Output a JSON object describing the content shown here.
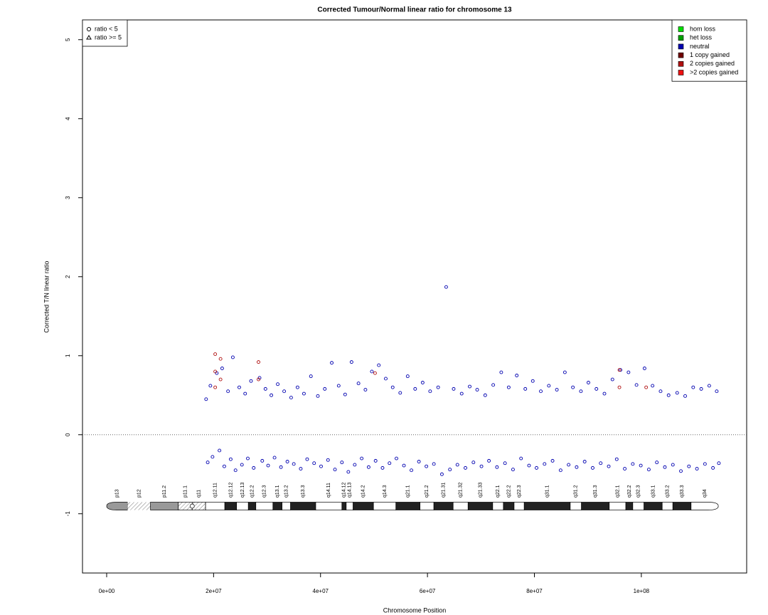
{
  "chart_data": {
    "type": "scatter",
    "title": "Corrected Tumour/Normal linear ratio for chromosome  13",
    "x_label": "Chromosome Position",
    "y_label": "Corrected T/N linear ratio",
    "xlim": [
      -4520000,
      119700000
    ],
    "ylim": [
      -1.75,
      5.25
    ],
    "xticks": [
      {
        "value": 0,
        "label": "0e+00"
      },
      {
        "value": 20000000,
        "label": "2e+07"
      },
      {
        "value": 40000000,
        "label": "4e+07"
      },
      {
        "value": 60000000,
        "label": "6e+07"
      },
      {
        "value": 80000000,
        "label": "8e+07"
      },
      {
        "value": 100000000,
        "label": "1e+08"
      }
    ],
    "yticks": [
      -1,
      0,
      1,
      2,
      3,
      4,
      5
    ],
    "reference_line": 0,
    "shape_legend": [
      "ratio < 5",
      "ratio >= 5"
    ],
    "legend_position": "top-right",
    "series": [
      {
        "name": "hom loss",
        "color": "#00e000",
        "x": [],
        "values": []
      },
      {
        "name": "het loss",
        "color": "#00a000",
        "x": [],
        "values": []
      },
      {
        "name": "neutral",
        "color": "#0000b0",
        "x": [
          18600000,
          18900000,
          19400000,
          19800000,
          20600000,
          21100000,
          21600000,
          22000000,
          22700000,
          23200000,
          23600000,
          24100000,
          24800000,
          25300000,
          25900000,
          26400000,
          27000000,
          27500000,
          28600000,
          29100000,
          29700000,
          30200000,
          30800000,
          31400000,
          32000000,
          32600000,
          33200000,
          33800000,
          34500000,
          35000000,
          35700000,
          36300000,
          36900000,
          37500000,
          38200000,
          38800000,
          39500000,
          40100000,
          40800000,
          41400000,
          42100000,
          42700000,
          43400000,
          44000000,
          44600000,
          45200000,
          45800000,
          46400000,
          47100000,
          47700000,
          48400000,
          49000000,
          49600000,
          50300000,
          50900000,
          51600000,
          52200000,
          52900000,
          53500000,
          54200000,
          54900000,
          55600000,
          56300000,
          57000000,
          57700000,
          58400000,
          59100000,
          59800000,
          60500000,
          61200000,
          62000000,
          62700000,
          63500000,
          64200000,
          64900000,
          65600000,
          66400000,
          67100000,
          67900000,
          68600000,
          69300000,
          70100000,
          70800000,
          71500000,
          72300000,
          73000000,
          73800000,
          74500000,
          75200000,
          76000000,
          76700000,
          77500000,
          78300000,
          79000000,
          79700000,
          80400000,
          81200000,
          81900000,
          82700000,
          83400000,
          84200000,
          84900000,
          85700000,
          86400000,
          87200000,
          87900000,
          88700000,
          89400000,
          90100000,
          90900000,
          91600000,
          92400000,
          93100000,
          93900000,
          94600000,
          95400000,
          96100000,
          96900000,
          97600000,
          98400000,
          99100000,
          99900000,
          100600000,
          101400000,
          102100000,
          102900000,
          103600000,
          104400000,
          105100000,
          105900000,
          106700000,
          107400000,
          108200000,
          108900000,
          109700000,
          110400000,
          111200000,
          111900000,
          112700000,
          113400000,
          114100000,
          114500000
        ],
        "values": [
          0.45,
          -0.35,
          0.62,
          -0.28,
          0.78,
          -0.2,
          0.84,
          -0.4,
          0.55,
          -0.31,
          0.98,
          -0.45,
          0.6,
          -0.38,
          0.52,
          -0.3,
          0.68,
          -0.42,
          0.72,
          -0.33,
          0.58,
          -0.39,
          0.5,
          -0.29,
          0.64,
          -0.41,
          0.55,
          -0.34,
          0.47,
          -0.37,
          0.6,
          -0.43,
          0.52,
          -0.31,
          0.74,
          -0.36,
          0.49,
          -0.4,
          0.58,
          -0.32,
          0.91,
          -0.44,
          0.62,
          -0.35,
          0.51,
          -0.47,
          0.92,
          -0.38,
          0.65,
          -0.3,
          0.57,
          -0.41,
          0.8,
          -0.33,
          0.88,
          -0.42,
          0.71,
          -0.36,
          0.6,
          -0.3,
          0.53,
          -0.39,
          0.74,
          -0.45,
          0.58,
          -0.34,
          0.66,
          -0.4,
          0.55,
          -0.37,
          0.6,
          -0.5,
          1.87,
          -0.44,
          0.58,
          -0.38,
          0.52,
          -0.42,
          0.61,
          -0.35,
          0.57,
          -0.4,
          0.5,
          -0.33,
          0.63,
          -0.41,
          0.79,
          -0.36,
          0.6,
          -0.44,
          0.75,
          -0.3,
          0.58,
          -0.39,
          0.68,
          -0.42,
          0.55,
          -0.37,
          0.62,
          -0.33,
          0.57,
          -0.45,
          0.79,
          -0.38,
          0.6,
          -0.41,
          0.55,
          -0.34,
          0.66,
          -0.42,
          0.58,
          -0.36,
          0.52,
          -0.4,
          0.7,
          -0.31,
          0.82,
          -0.43,
          0.79,
          -0.37,
          0.63,
          -0.39,
          0.84,
          -0.44,
          0.62,
          -0.35,
          0.55,
          -0.41,
          0.5,
          -0.38,
          0.53,
          -0.46,
          0.49,
          -0.4,
          0.6,
          -0.43,
          0.58,
          -0.37,
          0.62,
          -0.42,
          0.55,
          -0.36
        ]
      },
      {
        "name": "1 copy gained",
        "color": "#700000",
        "x": [],
        "values": []
      },
      {
        "name": "2 copies gained",
        "color": "#b01010",
        "x": [
          20300000,
          20300000,
          20300000,
          21300000,
          21300000,
          28400000,
          28400000,
          50200000,
          95900000,
          95900000,
          100900000
        ],
        "values": [
          1.02,
          0.8,
          0.6,
          0.96,
          0.7,
          0.92,
          0.7,
          0.78,
          0.82,
          0.6,
          0.6
        ]
      },
      {
        "name": ">2 copies gained",
        "color": "#ee1111",
        "x": [],
        "values": []
      }
    ],
    "ideogram": [
      {
        "name": "p13",
        "start": 0,
        "end": 3900000,
        "stain": "gvar"
      },
      {
        "name": "p12",
        "start": 3900000,
        "end": 8200000,
        "stain": "stalk"
      },
      {
        "name": "p11.2",
        "start": 8200000,
        "end": 13400000,
        "stain": "gvar"
      },
      {
        "name": "p11.1",
        "start": 13400000,
        "end": 16000000,
        "stain": "acen"
      },
      {
        "name": "q11",
        "start": 16000000,
        "end": 18500000,
        "stain": "acen"
      },
      {
        "name": "q12.11",
        "start": 18500000,
        "end": 22100000,
        "stain": "gneg"
      },
      {
        "name": "q12.12",
        "start": 22100000,
        "end": 24300000,
        "stain": "gpos"
      },
      {
        "name": "q12.13",
        "start": 24300000,
        "end": 26500000,
        "stain": "gneg"
      },
      {
        "name": "q12.2",
        "start": 26500000,
        "end": 27900000,
        "stain": "gpos"
      },
      {
        "name": "q12.3",
        "start": 27900000,
        "end": 31100000,
        "stain": "gneg"
      },
      {
        "name": "q13.1",
        "start": 31100000,
        "end": 32800000,
        "stain": "gpos"
      },
      {
        "name": "q13.2",
        "start": 32800000,
        "end": 34400000,
        "stain": "gneg"
      },
      {
        "name": "q13.3",
        "start": 34400000,
        "end": 39100000,
        "stain": "gpos"
      },
      {
        "name": "q14.11",
        "start": 39100000,
        "end": 44000000,
        "stain": "gneg"
      },
      {
        "name": "q14.12",
        "start": 44000000,
        "end": 44800000,
        "stain": "gpos"
      },
      {
        "name": "q14.13",
        "start": 44800000,
        "end": 46100000,
        "stain": "gneg"
      },
      {
        "name": "q14.2",
        "start": 46100000,
        "end": 49900000,
        "stain": "gpos"
      },
      {
        "name": "q14.3",
        "start": 49900000,
        "end": 54100000,
        "stain": "gneg"
      },
      {
        "name": "q21.1",
        "start": 54100000,
        "end": 58600000,
        "stain": "gpos"
      },
      {
        "name": "q21.2",
        "start": 58600000,
        "end": 61200000,
        "stain": "gneg"
      },
      {
        "name": "q21.31",
        "start": 61200000,
        "end": 64800000,
        "stain": "gpos"
      },
      {
        "name": "q21.32",
        "start": 64800000,
        "end": 67600000,
        "stain": "gneg"
      },
      {
        "name": "q21.33",
        "start": 67600000,
        "end": 72200000,
        "stain": "gpos"
      },
      {
        "name": "q22.1",
        "start": 72200000,
        "end": 74200000,
        "stain": "gneg"
      },
      {
        "name": "q22.2",
        "start": 74200000,
        "end": 76200000,
        "stain": "gpos"
      },
      {
        "name": "q22.3",
        "start": 76200000,
        "end": 78100000,
        "stain": "gneg"
      },
      {
        "name": "q31.1",
        "start": 78100000,
        "end": 86700000,
        "stain": "gpos"
      },
      {
        "name": "q31.2",
        "start": 86700000,
        "end": 88800000,
        "stain": "gneg"
      },
      {
        "name": "q31.3",
        "start": 88800000,
        "end": 94000000,
        "stain": "gpos"
      },
      {
        "name": "q32.1",
        "start": 94000000,
        "end": 97100000,
        "stain": "gneg"
      },
      {
        "name": "q32.2",
        "start": 97100000,
        "end": 98400000,
        "stain": "gpos"
      },
      {
        "name": "q32.3",
        "start": 98400000,
        "end": 100500000,
        "stain": "gneg"
      },
      {
        "name": "q33.1",
        "start": 100500000,
        "end": 103900000,
        "stain": "gpos"
      },
      {
        "name": "q33.2",
        "start": 103900000,
        "end": 105900000,
        "stain": "gneg"
      },
      {
        "name": "q33.3",
        "start": 105900000,
        "end": 109300000,
        "stain": "gpos"
      },
      {
        "name": "q34",
        "start": 109300000,
        "end": 114400000,
        "stain": "gneg"
      }
    ]
  }
}
